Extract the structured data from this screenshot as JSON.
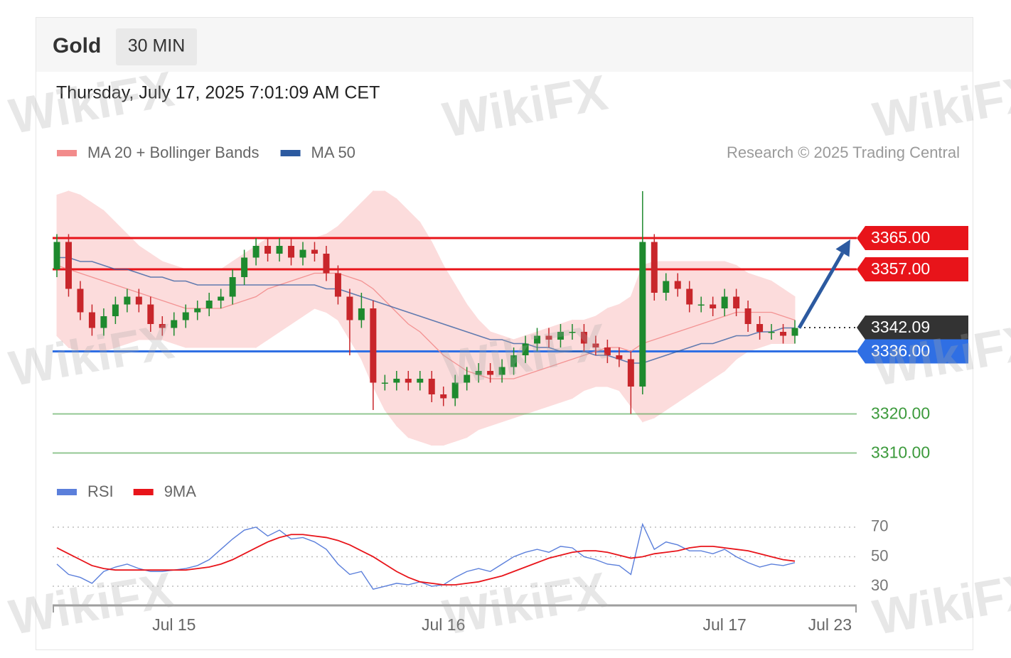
{
  "header": {
    "title": "Gold",
    "timeframe": "30 MIN",
    "timestamp": "Thursday, July 17, 2025 7:01:09 AM CET"
  },
  "watermark": "WikiFX",
  "chart_data": [
    {
      "type": "candlestick",
      "credit": "Research © 2025 Trading Central",
      "categories": [
        null,
        null,
        null,
        null,
        null,
        null,
        null,
        null,
        null,
        null,
        "Jul 15",
        null,
        null,
        null,
        null,
        null,
        null,
        null,
        null,
        null,
        null,
        null,
        null,
        null,
        null,
        null,
        null,
        null,
        null,
        null,
        null,
        null,
        null,
        "Jul 16",
        null,
        null,
        null,
        null,
        null,
        null,
        null,
        null,
        null,
        null,
        null,
        null,
        null,
        null,
        null,
        null,
        null,
        null,
        null,
        null,
        null,
        null,
        null,
        "Jul 17",
        null,
        null,
        null,
        null,
        null,
        null
      ],
      "axis_end_label": "Jul 23",
      "open": [
        3357,
        3364,
        3352,
        3346,
        3342,
        3345,
        3348,
        3350,
        3348,
        3343,
        3342,
        3344,
        3346,
        3347,
        3349,
        3350,
        3355,
        3360,
        3363,
        3361,
        3363,
        3360,
        3362,
        3361,
        3356,
        3350,
        3344,
        3347,
        3328,
        3328,
        3329,
        3328,
        3329,
        3325,
        3324,
        3328,
        3330,
        3331,
        3330,
        3332,
        3335,
        3338,
        3340,
        3339,
        3341,
        3341,
        3338,
        3337,
        3335,
        3334,
        3327,
        3364,
        3351,
        3354,
        3352,
        3348,
        3348,
        3347,
        3350,
        3347,
        3343,
        3341,
        3341,
        3340
      ],
      "high": [
        3366,
        3366,
        3354,
        3348,
        3347,
        3350,
        3352,
        3352,
        3350,
        3345,
        3346,
        3348,
        3349,
        3351,
        3352,
        3357,
        3362,
        3365,
        3365,
        3365,
        3365,
        3364,
        3364,
        3363,
        3358,
        3352,
        3351,
        3349,
        3330,
        3331,
        3331,
        3331,
        3331,
        3327,
        3330,
        3332,
        3333,
        3333,
        3334,
        3337,
        3340,
        3342,
        3342,
        3343,
        3343,
        3343,
        3340,
        3339,
        3337,
        3336,
        3377,
        3366,
        3356,
        3356,
        3354,
        3350,
        3350,
        3352,
        3352,
        3349,
        3345,
        3343,
        3343,
        3344
      ],
      "low": [
        3355,
        3350,
        3344,
        3340,
        3340,
        3343,
        3346,
        3346,
        3341,
        3340,
        3340,
        3342,
        3344,
        3345,
        3347,
        3348,
        3353,
        3358,
        3359,
        3359,
        3358,
        3358,
        3359,
        3354,
        3348,
        3335,
        3342,
        3321,
        3326,
        3326,
        3326,
        3326,
        3323,
        3322,
        3322,
        3326,
        3328,
        3328,
        3328,
        3330,
        3333,
        3336,
        3337,
        3337,
        3339,
        3336,
        3335,
        3333,
        3332,
        3320,
        3325,
        3349,
        3349,
        3350,
        3346,
        3346,
        3345,
        3345,
        3345,
        3341,
        3339,
        3339,
        3338,
        3338
      ],
      "close": [
        3364,
        3352,
        3346,
        3342,
        3345,
        3348,
        3350,
        3348,
        3343,
        3342,
        3344,
        3346,
        3347,
        3349,
        3350,
        3355,
        3360,
        3363,
        3361,
        3363,
        3360,
        3362,
        3361,
        3356,
        3350,
        3344,
        3347,
        3328,
        3328,
        3329,
        3328,
        3329,
        3325,
        3324,
        3328,
        3330,
        3331,
        3330,
        3332,
        3335,
        3338,
        3340,
        3339,
        3341,
        3341,
        3338,
        3337,
        3335,
        3334,
        3327,
        3364,
        3351,
        3354,
        3352,
        3348,
        3348,
        3347,
        3350,
        3347,
        3343,
        3341,
        3341,
        3340,
        3342
      ],
      "up_color": "#1e8a2e",
      "down_color": "#c8262b",
      "band_color": "#fcdcdc",
      "series": [
        {
          "name": "MA 20 + Bollinger Bands",
          "color": "#f28b8b",
          "values": [
            3358,
            3357,
            3356,
            3355,
            3354,
            3353,
            3352,
            3351,
            3350,
            3349,
            3348,
            3347,
            3347,
            3347,
            3347,
            3348,
            3349,
            3350,
            3352,
            3353,
            3354,
            3355,
            3356,
            3356,
            3356,
            3355,
            3354,
            3352,
            3349,
            3346,
            3343,
            3341,
            3338,
            3335,
            3333,
            3331,
            3330,
            3329,
            3329,
            3329,
            3330,
            3331,
            3332,
            3333,
            3334,
            3335,
            3336,
            3337,
            3337,
            3336,
            3338,
            3339,
            3340,
            3341,
            3342,
            3343,
            3344,
            3345,
            3346,
            3346,
            3346,
            3346,
            3345,
            3344
          ],
          "upper": [
            3376,
            3377,
            3376,
            3374,
            3372,
            3369,
            3366,
            3363,
            3361,
            3359,
            3358,
            3357,
            3357,
            3357,
            3357,
            3359,
            3361,
            3363,
            3365,
            3365,
            3365,
            3365,
            3365,
            3366,
            3368,
            3371,
            3374,
            3377,
            3377,
            3375,
            3372,
            3369,
            3364,
            3358,
            3353,
            3348,
            3344,
            3341,
            3340,
            3339,
            3340,
            3341,
            3342,
            3343,
            3344,
            3344,
            3345,
            3347,
            3348,
            3350,
            3358,
            3359,
            3359,
            3359,
            3359,
            3359,
            3359,
            3359,
            3358,
            3356,
            3355,
            3354,
            3352,
            3350
          ],
          "lower": [
            3340,
            3337,
            3336,
            3336,
            3336,
            3337,
            3338,
            3339,
            3339,
            3339,
            3338,
            3337,
            3337,
            3337,
            3337,
            3337,
            3337,
            3337,
            3339,
            3341,
            3343,
            3345,
            3347,
            3346,
            3344,
            3339,
            3334,
            3327,
            3321,
            3317,
            3314,
            3313,
            3312,
            3312,
            3313,
            3314,
            3316,
            3317,
            3318,
            3319,
            3320,
            3321,
            3322,
            3323,
            3324,
            3326,
            3327,
            3327,
            3326,
            3322,
            3318,
            3319,
            3321,
            3323,
            3325,
            3327,
            3329,
            3331,
            3334,
            3336,
            3337,
            3338,
            3338,
            3338
          ]
        },
        {
          "name": "MA 50",
          "color": "#2c5aa0",
          "values": [
            3360,
            3360,
            3359,
            3359,
            3358,
            3357,
            3357,
            3356,
            3355,
            3355,
            3354,
            3354,
            3353,
            3353,
            3353,
            3353,
            3353,
            3353,
            3353,
            3353,
            3353,
            3353,
            3353,
            3352,
            3352,
            3351,
            3350,
            3349,
            3348,
            3347,
            3346,
            3345,
            3344,
            3343,
            3342,
            3341,
            3340,
            3339,
            3339,
            3338,
            3338,
            3337,
            3337,
            3336,
            3336,
            3336,
            3335,
            3335,
            3334,
            3333,
            3333,
            3334,
            3335,
            3336,
            3337,
            3338,
            3338,
            3339,
            3340,
            3340,
            3341,
            3341,
            3342,
            3342
          ]
        }
      ],
      "levels": [
        {
          "value": 3365,
          "label": "3365.00",
          "color": "#e8141a",
          "boxed": true,
          "dash": false
        },
        {
          "value": 3357,
          "label": "3357.00",
          "color": "#e8141a",
          "boxed": true,
          "dash": false
        },
        {
          "value": 3342.09,
          "label": "3342.09",
          "color": "#333333",
          "boxed": true,
          "dash": true
        },
        {
          "value": 3336,
          "label": "3336.00",
          "color": "#2f6fe4",
          "boxed": true,
          "dash": false
        },
        {
          "value": 3320,
          "label": "3320.00",
          "color": "#3c9a3c",
          "boxed": false,
          "dash": false
        },
        {
          "value": 3310,
          "label": "3310.00",
          "color": "#3c9a3c",
          "boxed": false,
          "dash": false
        }
      ],
      "ylim": [
        3307,
        3381
      ]
    },
    {
      "type": "line",
      "series": [
        {
          "name": "RSI",
          "color": "#5b7fdb",
          "values": [
            45,
            38,
            36,
            32,
            40,
            43,
            45,
            42,
            40,
            40,
            41,
            42,
            44,
            48,
            55,
            62,
            68,
            70,
            64,
            68,
            62,
            63,
            60,
            55,
            45,
            38,
            40,
            28,
            30,
            32,
            31,
            33,
            30,
            31,
            36,
            40,
            42,
            40,
            45,
            50,
            53,
            55,
            53,
            57,
            56,
            50,
            48,
            45,
            44,
            38,
            72,
            55,
            60,
            58,
            54,
            54,
            52,
            55,
            50,
            46,
            43,
            45,
            44,
            46
          ]
        },
        {
          "name": "9MA",
          "color": "#e8141a",
          "values": [
            56,
            52,
            48,
            44,
            42,
            41,
            41,
            41,
            41,
            41,
            41,
            41,
            42,
            43,
            45,
            48,
            52,
            56,
            60,
            63,
            65,
            65,
            64,
            63,
            61,
            58,
            54,
            50,
            45,
            40,
            36,
            33,
            32,
            31,
            31,
            32,
            33,
            35,
            37,
            40,
            43,
            46,
            49,
            51,
            53,
            54,
            54,
            53,
            51,
            49,
            50,
            52,
            53,
            54,
            56,
            57,
            57,
            56,
            55,
            54,
            52,
            50,
            48,
            47
          ]
        }
      ],
      "ylim": [
        18,
        81
      ],
      "yticks": [
        30,
        50,
        70
      ],
      "grid": true
    }
  ]
}
